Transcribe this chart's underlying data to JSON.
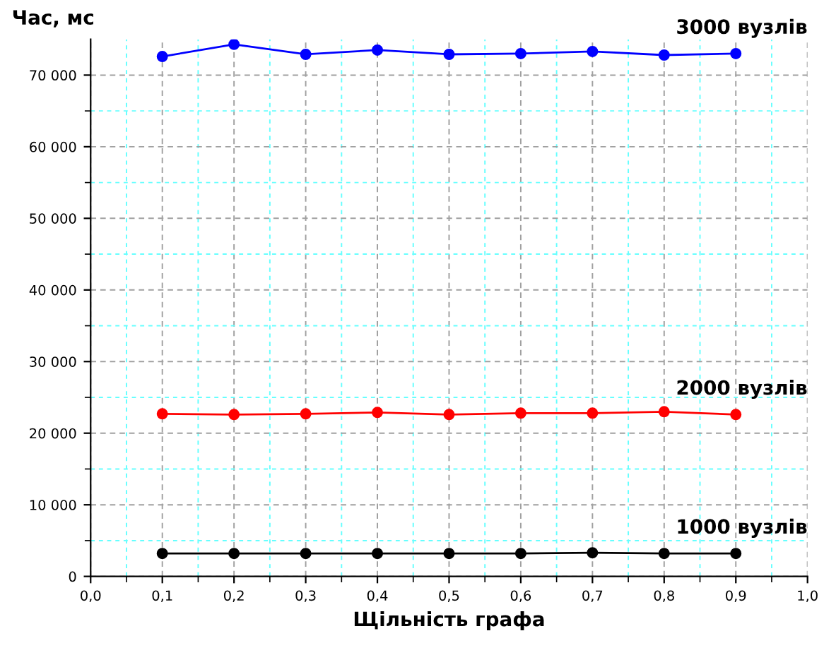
{
  "chart_data": {
    "type": "line",
    "xlabel": "Щільність графа",
    "ylabel": "Час, мс",
    "x": [
      0.1,
      0.2,
      0.3,
      0.4,
      0.5,
      0.6,
      0.7,
      0.8,
      0.9
    ],
    "series": [
      {
        "name": "3000 вузлів",
        "color": "#0000ff",
        "values": [
          72600,
          74300,
          72900,
          73500,
          72900,
          73000,
          73300,
          72800,
          73000
        ]
      },
      {
        "name": "2000 вузлів",
        "color": "#ff0000",
        "values": [
          22700,
          22600,
          22700,
          22900,
          22600,
          22800,
          22800,
          23000,
          22600
        ]
      },
      {
        "name": "1000 вузлів",
        "color": "#000000",
        "values": [
          3200,
          3200,
          3200,
          3200,
          3200,
          3200,
          3300,
          3200,
          3200
        ]
      }
    ],
    "xlim": [
      0,
      1
    ],
    "xticks": [
      {
        "value": 0,
        "label": "0,0"
      },
      {
        "value": 0.1,
        "label": "0,1"
      },
      {
        "value": 0.2,
        "label": "0,2"
      },
      {
        "value": 0.3,
        "label": "0,3"
      },
      {
        "value": 0.4,
        "label": "0,4"
      },
      {
        "value": 0.5,
        "label": "0,5"
      },
      {
        "value": 0.6,
        "label": "0,6"
      },
      {
        "value": 0.7,
        "label": "0,7"
      },
      {
        "value": 0.8,
        "label": "0,8"
      },
      {
        "value": 0.9,
        "label": "0,9"
      },
      {
        "value": 1,
        "label": "1,0"
      },
      {
        "value": 0.05,
        "label": null
      },
      {
        "value": 0.15,
        "label": null
      },
      {
        "value": 0.25,
        "label": null
      },
      {
        "value": 0.35,
        "label": null
      },
      {
        "value": 0.45,
        "label": null
      },
      {
        "value": 0.55,
        "label": null
      },
      {
        "value": 0.65,
        "label": null
      },
      {
        "value": 0.75,
        "label": null
      },
      {
        "value": 0.85,
        "label": null
      },
      {
        "value": 0.95,
        "label": null
      }
    ],
    "ylim": [
      0,
      75000
    ],
    "yticks": [
      0,
      {
        "value": 10000,
        "label": "10 000"
      },
      {
        "value": 20000,
        "label": "20 000"
      },
      {
        "value": 30000,
        "label": "30 000"
      },
      {
        "value": 40000,
        "label": "40 000"
      },
      {
        "value": 50000,
        "label": "50 000"
      },
      {
        "value": 60000,
        "label": "60 000"
      },
      {
        "value": 70000,
        "label": "70 000"
      },
      {
        "value": 5000,
        "label": null
      },
      {
        "value": 15000,
        "label": null
      },
      {
        "value": 25000,
        "label": null
      },
      {
        "value": 35000,
        "label": null
      },
      {
        "value": 45000,
        "label": null
      },
      {
        "value": 55000,
        "label": null
      },
      {
        "value": 65000,
        "label": null
      }
    ],
    "grid": true,
    "marker": "circle",
    "line_style": "solid"
  }
}
